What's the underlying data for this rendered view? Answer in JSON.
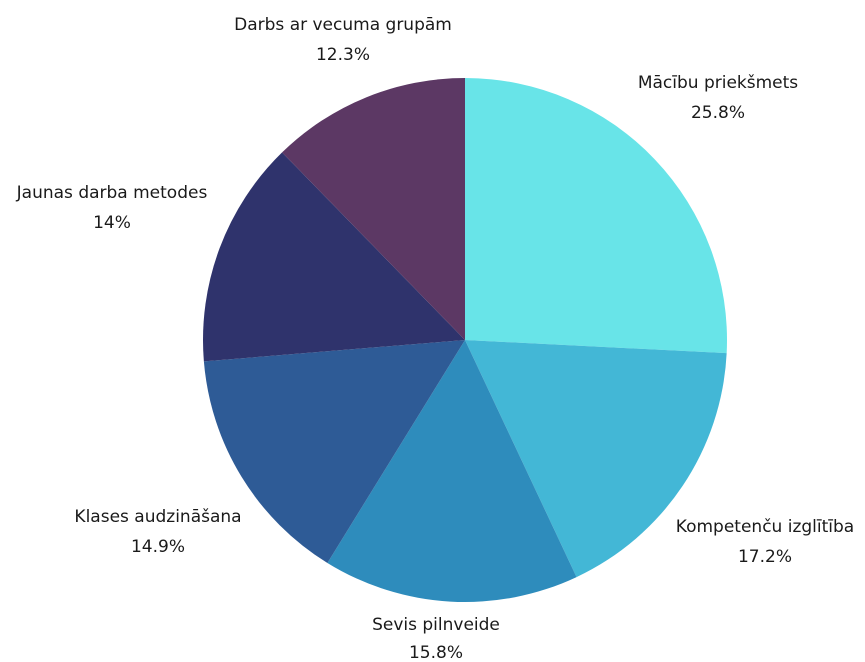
{
  "chart_data": {
    "type": "pie",
    "slices": [
      {
        "label": "Mācību priekšmets",
        "value_text": "25.8%",
        "value": 25.8,
        "color": "#68E4E8"
      },
      {
        "label": "Kompetenču izglītība",
        "value_text": "17.2%",
        "value": 17.2,
        "color": "#43B7D6"
      },
      {
        "label": "Sevis pilnveide",
        "value_text": "15.8%",
        "value": 15.8,
        "color": "#2E8CBC"
      },
      {
        "label": "Klases audzināšana",
        "value_text": "14.9%",
        "value": 14.9,
        "color": "#2E5B96"
      },
      {
        "label": "Jaunas darba metodes",
        "value_text": "14%",
        "value": 14.0,
        "color": "#2F336C"
      },
      {
        "label": "Darbs ar vecuma grupām",
        "value_text": "12.3%",
        "value": 12.3,
        "color": "#5C3864"
      }
    ]
  }
}
